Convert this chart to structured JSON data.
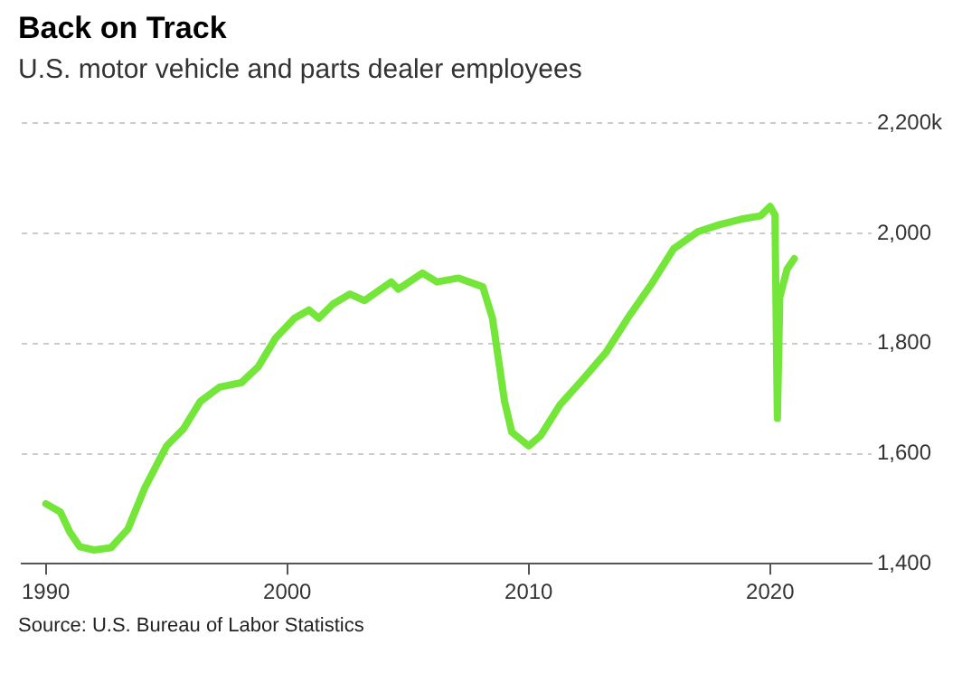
{
  "chart_data": {
    "type": "line",
    "title": "Back on Track",
    "subtitle": "U.S. motor vehicle and parts dealer employees",
    "x": [
      1990.0,
      1990.6,
      1991.0,
      1991.4,
      1992.0,
      1992.7,
      1993.4,
      1994.1,
      1995.0,
      1995.7,
      1996.4,
      1997.2,
      1998.1,
      1998.8,
      1999.5,
      2000.3,
      2000.9,
      2001.3,
      2001.9,
      2002.6,
      2003.2,
      2004.3,
      2004.6,
      2005.6,
      2006.2,
      2007.1,
      2008.1,
      2008.5,
      2009.0,
      2009.3,
      2010.0,
      2010.5,
      2011.3,
      2012.2,
      2013.2,
      2014.1,
      2015.1,
      2016.0,
      2017.0,
      2017.9,
      2018.8,
      2019.6,
      2020.0,
      2020.2,
      2020.3,
      2020.4,
      2020.7,
      2021.0
    ],
    "series": [
      {
        "color": "#73e639",
        "values": [
          1509,
          1494,
          1457,
          1431,
          1425,
          1429,
          1463,
          1538,
          1614,
          1645,
          1695,
          1721,
          1729,
          1758,
          1809,
          1846,
          1861,
          1846,
          1872,
          1890,
          1878,
          1912,
          1899,
          1928,
          1912,
          1919,
          1903,
          1846,
          1695,
          1639,
          1614,
          1633,
          1689,
          1733,
          1784,
          1846,
          1909,
          1972,
          2003,
          2016,
          2026,
          2032,
          2049,
          2034,
          1664,
          1884,
          1935,
          1954
        ]
      }
    ],
    "xlim": [
      1989.0,
      2024.2
    ],
    "xticks": [
      1990,
      2000,
      2010,
      2020
    ],
    "ylim": [
      1400,
      2200
    ],
    "yticks": [
      {
        "value": 1400,
        "label": "1,400"
      },
      {
        "value": 1600,
        "label": "1,600"
      },
      {
        "value": 1800,
        "label": "1,800"
      },
      {
        "value": 2000,
        "label": "2,000"
      },
      {
        "value": 2200,
        "label": "2,200k"
      }
    ],
    "grid": "y",
    "legend": false,
    "marker": "none",
    "line_style": "solid",
    "annotations": [
      "Source: U.S. Bureau of Labor Statistics"
    ]
  }
}
